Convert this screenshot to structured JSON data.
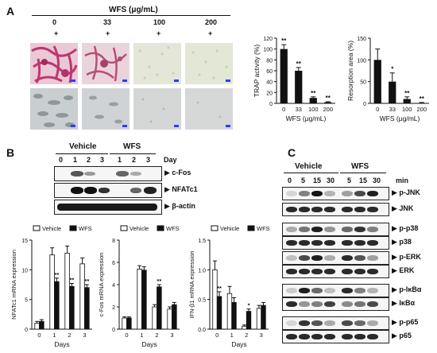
{
  "panels": {
    "a": "A",
    "b": "B",
    "c": "C"
  },
  "panel_a": {
    "header": "WFS (μg/mL)",
    "doses": [
      "0",
      "33",
      "100",
      "200"
    ],
    "plus": [
      "+",
      "+",
      "+",
      "+"
    ]
  },
  "panel_b": {
    "vehicle": "Vehicle",
    "wfs": "WFS",
    "day_label": "Day",
    "day_ticks": [
      "0",
      "1",
      "2",
      "3",
      "1",
      "2",
      "3"
    ],
    "blots": [
      "▶ c-Fos",
      "▶ NFATc1",
      "▶ β-actin"
    ]
  },
  "panel_c": {
    "vehicle": "Vehicle",
    "wfs": "WFS",
    "min_label": "min",
    "min_ticks": [
      "0",
      "5",
      "15",
      "30",
      "5",
      "15",
      "30"
    ],
    "blots": [
      "▶ p-JNK",
      "▶ JNK",
      "▶ p-p38",
      "▶ p38",
      "▶ p-ERK",
      "▶ ERK",
      "▶ p-IκBα",
      "▶ IκBα",
      "▶ p-p65",
      "▶ p65"
    ]
  },
  "chart_data": [
    {
      "type": "bar",
      "ylabel": "TRAP activity (%)",
      "xlabel": "WFS (μg/mL)",
      "categories": [
        "0",
        "33",
        "100",
        "200"
      ],
      "values": [
        100,
        60,
        10,
        2
      ],
      "errors": [
        8,
        6,
        2,
        1
      ],
      "sig": [
        "**",
        "**",
        "**",
        "**"
      ],
      "yticks": [
        0,
        20,
        40,
        60,
        80,
        100,
        120
      ],
      "ylim": [
        0,
        120
      ]
    },
    {
      "type": "bar",
      "ylabel": "Resorption area (%)",
      "xlabel": "WFS (μg/mL)",
      "categories": [
        "0",
        "33",
        "100",
        "200"
      ],
      "values": [
        100,
        50,
        10,
        1
      ],
      "errors": [
        25,
        20,
        5,
        1
      ],
      "sig": [
        "",
        "*",
        "**",
        "**"
      ],
      "yticks": [
        0,
        50,
        100,
        150
      ],
      "ylim": [
        0,
        150
      ]
    },
    {
      "type": "bar",
      "ylabel": "NFATc1 mRNA expression",
      "xlabel": "Days",
      "categories": [
        "0",
        "1",
        "2",
        "3"
      ],
      "legend": [
        "Vehicle",
        "WFS"
      ],
      "series": [
        {
          "name": "Vehicle",
          "values": [
            1.0,
            12.5,
            12.8,
            11.0
          ],
          "errors": [
            0.3,
            1.2,
            1.2,
            1.0
          ]
        },
        {
          "name": "WFS",
          "values": [
            1.3,
            8.0,
            7.2,
            7.0
          ],
          "errors": [
            0.3,
            0.6,
            0.5,
            0.5
          ]
        }
      ],
      "sig": [
        "",
        "**",
        "**",
        "**"
      ],
      "yticks": [
        0,
        5,
        10,
        15
      ],
      "ylim": [
        0,
        15
      ]
    },
    {
      "type": "bar",
      "ylabel": "c-Fos mRNA expression",
      "xlabel": "Days",
      "categories": [
        "0",
        "1",
        "2",
        "3"
      ],
      "legend": [
        "Vehicle",
        "WFS"
      ],
      "series": [
        {
          "name": "Vehicle",
          "values": [
            1.0,
            5.4,
            2.0,
            1.8
          ],
          "errors": [
            0.1,
            0.3,
            0.2,
            0.2
          ]
        },
        {
          "name": "WFS",
          "values": [
            1.0,
            5.3,
            3.8,
            2.2
          ],
          "errors": [
            0.1,
            0.3,
            0.2,
            0.2
          ]
        }
      ],
      "sig": [
        "",
        "",
        "**",
        ""
      ],
      "yticks": [
        0,
        2,
        4,
        6,
        8
      ],
      "ylim": [
        0,
        8
      ]
    },
    {
      "type": "bar",
      "ylabel": "IFN-β1 mRNA expression",
      "xlabel": "Days",
      "categories": [
        "0",
        "1",
        "2",
        "3"
      ],
      "legend": [
        "Vehicle",
        "WFS"
      ],
      "series": [
        {
          "name": "Vehicle",
          "values": [
            1.0,
            0.6,
            0.05,
            0.35
          ],
          "errors": [
            0.15,
            0.12,
            0.02,
            0.05
          ]
        },
        {
          "name": "WFS",
          "values": [
            0.55,
            0.45,
            0.3,
            0.4
          ],
          "errors": [
            0.08,
            0.08,
            0.04,
            0.05
          ]
        }
      ],
      "sig": [
        "**",
        "",
        "*",
        ""
      ],
      "yticks": [
        0.0,
        0.5,
        1.0,
        1.5
      ],
      "ylim": [
        0,
        1.5
      ]
    }
  ]
}
